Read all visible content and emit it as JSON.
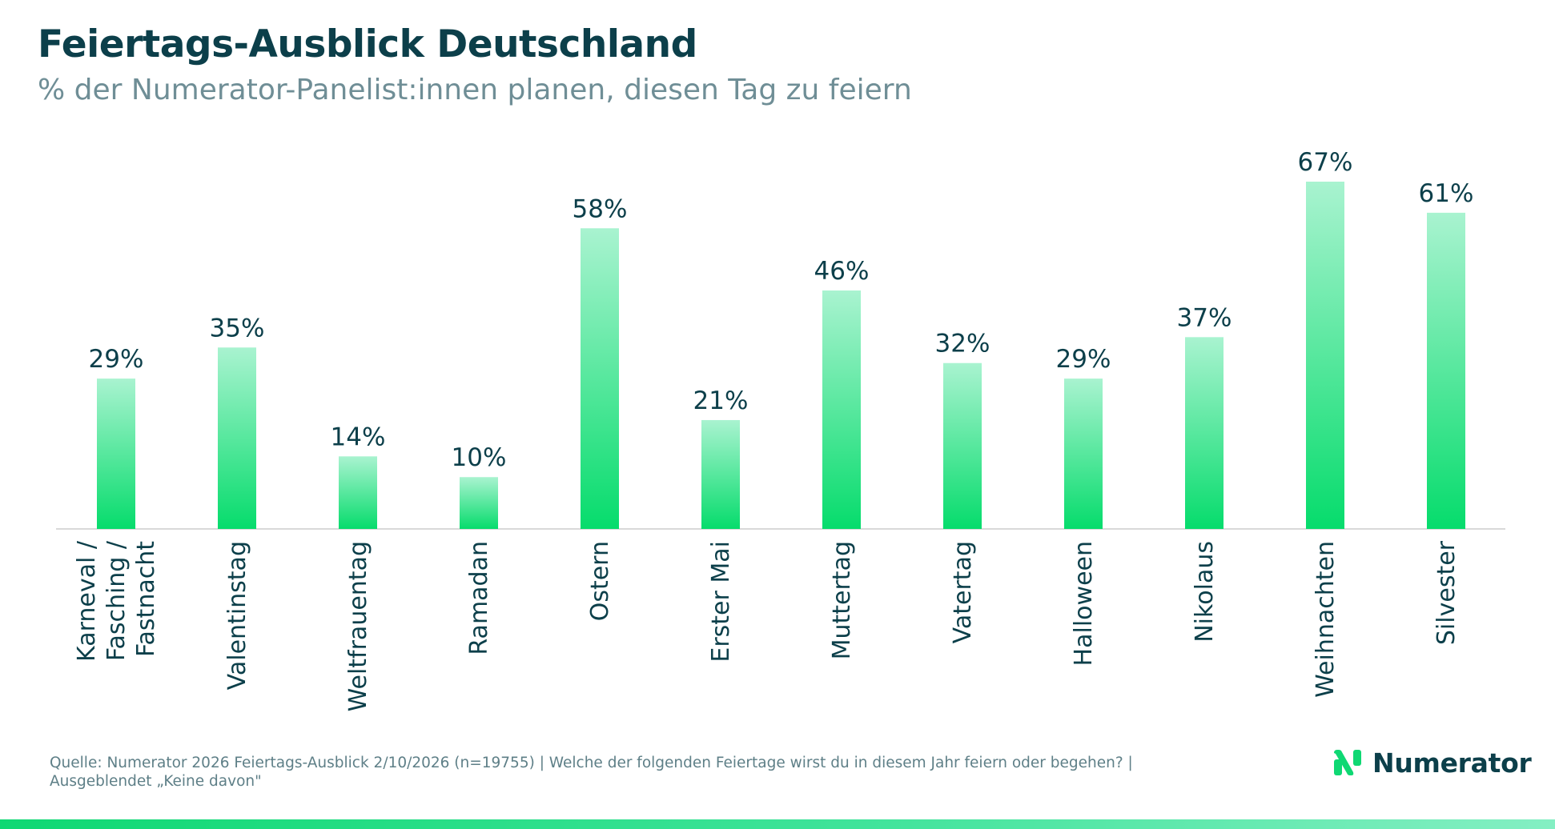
{
  "header": {
    "title": "Feiertags-Ausblick Deutschland",
    "subtitle": "% der Numerator-Panelist:innen planen, diesen Tag zu feiern"
  },
  "chart_data": {
    "type": "bar",
    "title": "Feiertags-Ausblick Deutschland",
    "subtitle": "% der Numerator-Panelist:innen planen, diesen Tag zu feiern",
    "categories": [
      [
        "Karneval /",
        "Fasching /",
        "Fastnacht"
      ],
      [
        "Valentinstag"
      ],
      [
        "Weltfrauentag"
      ],
      [
        "Ramadan"
      ],
      [
        "Ostern"
      ],
      [
        "Erster Mai"
      ],
      [
        "Muttertag"
      ],
      [
        "Vatertag"
      ],
      [
        "Halloween"
      ],
      [
        "Nikolaus"
      ],
      [
        "Weihnachten"
      ],
      [
        "Silvester"
      ]
    ],
    "values": [
      29,
      35,
      14,
      10,
      58,
      21,
      46,
      32,
      29,
      37,
      67,
      61
    ],
    "value_labels": [
      "29%",
      "35%",
      "14%",
      "10%",
      "58%",
      "21%",
      "46%",
      "32%",
      "29%",
      "37%",
      "67%",
      "61%"
    ],
    "unit": "%",
    "ylim": [
      0,
      70
    ],
    "grid": false,
    "legend": "none",
    "colors": {
      "bar_top": "#a9f3d0",
      "bar_bottom": "#06dc6c",
      "text": "#0c3f4a",
      "baseline": "#d9d9d9"
    }
  },
  "footnote": {
    "lines": [
      "Quelle: Numerator 2026 Feiertags-Ausblick 2/10/2026 (n=19755) | Welche der folgenden Feiertage wirst du in diesem Jahr feiern oder begehen? |",
      "Ausgeblendet „Keine davon\""
    ]
  },
  "brand": {
    "logo_icon": "numerator-n-icon",
    "name": "Numerator",
    "colors": {
      "logo_green": "#0fd873",
      "logo_dark": "#0c3f4a"
    }
  }
}
